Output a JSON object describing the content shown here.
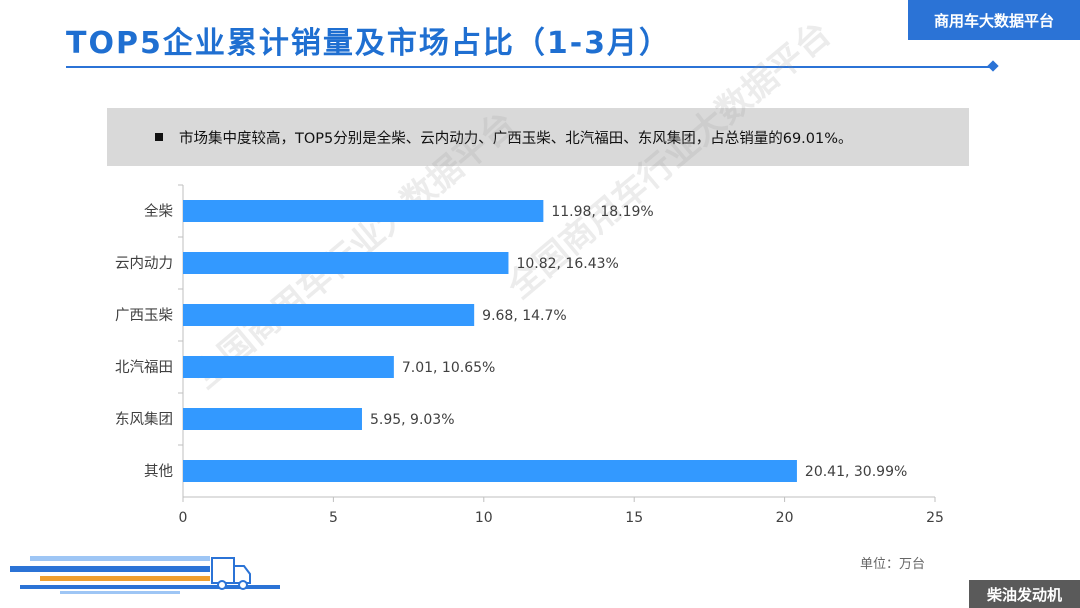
{
  "header": {
    "title": "TOP5企业累计销量及市场占比（1-3月）",
    "brand": "商用车大数据平台"
  },
  "summary": {
    "text": "市场集中度较高，TOP5分别是全柴、云内动力、广西玉柴、北汽福田、东风集团，占总销量的69.01%。"
  },
  "watermark": {
    "text": "全国商用车行业大数据平台"
  },
  "footer": {
    "unit_note": "单位：万台",
    "section_tag": "柴油发动机"
  },
  "colors": {
    "accent": "#2b73d6",
    "bar": "#3399ff",
    "summary_bg": "#d9d9d9",
    "footer_tag_bg": "#5a5a5a"
  },
  "chart_data": {
    "type": "bar",
    "orientation": "horizontal",
    "categories": [
      "全柴",
      "云内动力",
      "广西玉柴",
      "北汽福田",
      "东风集团",
      "其他"
    ],
    "values": [
      11.98,
      10.82,
      9.68,
      7.01,
      5.95,
      20.41
    ],
    "data_labels": [
      "11.98, 18.19%",
      "10.82, 16.43%",
      "9.68, 14.7%",
      "7.01, 10.65%",
      "5.95, 9.03%",
      "20.41, 30.99%"
    ],
    "xlim": [
      0,
      25
    ],
    "xticks": [
      0,
      5,
      10,
      15,
      20,
      25
    ],
    "grid": false,
    "legend": "none"
  }
}
